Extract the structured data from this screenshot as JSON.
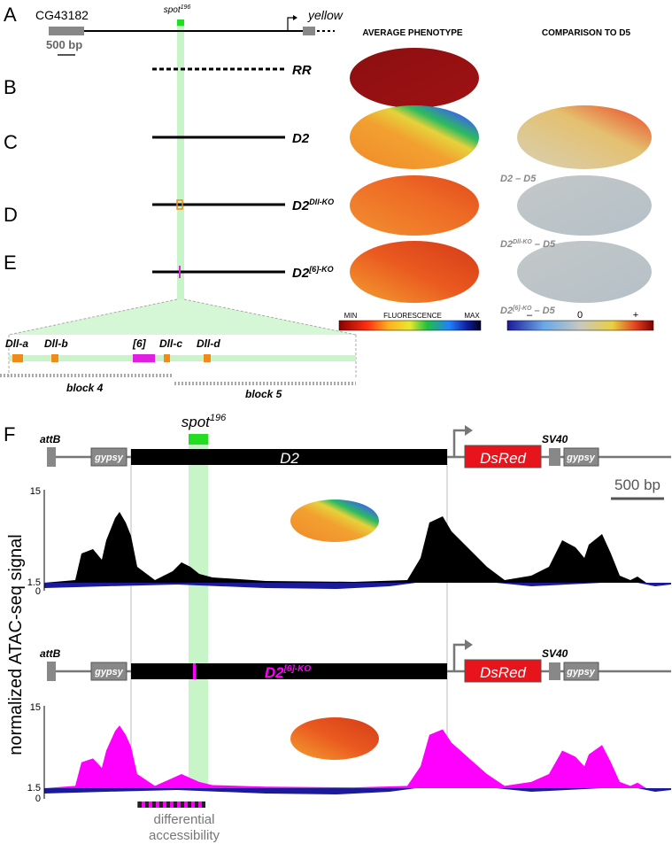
{
  "panels": [
    "A",
    "B",
    "C",
    "D",
    "E",
    "F"
  ],
  "locus": {
    "gene_left": "CG43182",
    "enhancer": {
      "base": "spot",
      "sup": "196"
    },
    "gene_right": "yellow",
    "scale": "500 bp"
  },
  "constructs": [
    {
      "base": "RR",
      "sup": ""
    },
    {
      "base": "D2",
      "sup": ""
    },
    {
      "base": "D2",
      "sup": "Dll-KO"
    },
    {
      "base": "D2",
      "sup": "[6]-KO"
    }
  ],
  "headings": {
    "average": "AVERAGE PHENOTYPE",
    "comparison": "COMPARISON TO D5"
  },
  "comparisons": [
    {
      "base": "D2",
      "sup": "",
      "rest": " – D5"
    },
    {
      "base": "D2",
      "sup": "Dll-KO",
      "rest": " – D5"
    },
    {
      "base": "D2",
      "sup": "[6]-KO",
      "rest": " – D5"
    }
  ],
  "colorbar_fluor": {
    "min": "MIN",
    "label": "FLUORESCENCE",
    "max": "MAX"
  },
  "colorbar_diff": {
    "neg": "–",
    "zero": "0",
    "pos": "+"
  },
  "sites": [
    "Dll-a",
    "Dll-b",
    "[6]",
    "Dll-c",
    "Dll-d"
  ],
  "blocks": [
    "block 4",
    "block 5"
  ],
  "reporter": {
    "attB": "attB",
    "gypsy": "gypsy",
    "insert": "D2",
    "insert_ko": {
      "base": "D2",
      "sup": "[6]-KO"
    },
    "reporter": "DsRed",
    "sv40": "SV40",
    "enhancer": {
      "base": "spot",
      "sup": "196"
    },
    "scale": "500 bp"
  },
  "tracks": {
    "y_label": "normalized ATAC-seq signal",
    "ticks": [
      "15",
      "1.5",
      "0"
    ]
  },
  "annotation": [
    "differential",
    "accessibility"
  ]
}
